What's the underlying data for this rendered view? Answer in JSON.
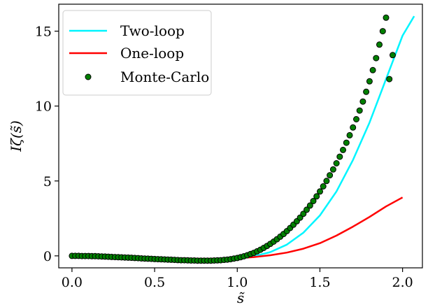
{
  "chart_data": {
    "type": "line",
    "xlabel": "s̃",
    "ylabel": "Iζ(s̃)",
    "xlim": [
      -0.08,
      2.12
    ],
    "ylim": [
      -0.8,
      16.8
    ],
    "xticks": [
      0.0,
      0.5,
      1.0,
      1.5,
      2.0
    ],
    "xtick_labels": [
      "0.0",
      "0.5",
      "1.0",
      "1.5",
      "2.0"
    ],
    "yticks": [
      0,
      5,
      10,
      15
    ],
    "ytick_labels": [
      "0",
      "5",
      "10",
      "15"
    ],
    "grid": false,
    "legend_position": "top-left",
    "series": [
      {
        "name": "Two-loop",
        "kind": "line",
        "color": "#00f5ff",
        "x": [
          0.0,
          0.2,
          0.4,
          0.6,
          0.8,
          1.0,
          1.1,
          1.2,
          1.3,
          1.4,
          1.5,
          1.6,
          1.7,
          1.8,
          1.9,
          2.0,
          2.07
        ],
        "y": [
          0.0,
          -0.02,
          -0.08,
          -0.18,
          -0.24,
          -0.16,
          -0.03,
          0.25,
          0.75,
          1.55,
          2.7,
          4.3,
          6.4,
          8.9,
          11.8,
          14.7,
          16.0
        ]
      },
      {
        "name": "One-loop",
        "kind": "line",
        "color": "#ff0000",
        "x": [
          0.0,
          0.2,
          0.4,
          0.6,
          0.8,
          1.0,
          1.1,
          1.2,
          1.3,
          1.4,
          1.5,
          1.6,
          1.7,
          1.8,
          1.9,
          2.0
        ],
        "y": [
          0.0,
          -0.02,
          -0.07,
          -0.15,
          -0.2,
          -0.16,
          -0.08,
          0.04,
          0.22,
          0.48,
          0.85,
          1.35,
          1.95,
          2.6,
          3.3,
          3.9
        ]
      },
      {
        "name": "Monte-Carlo",
        "kind": "scatter",
        "color": "#008000",
        "x": [
          0.0,
          0.02,
          0.04,
          0.06,
          0.08,
          0.1,
          0.12,
          0.14,
          0.16,
          0.18,
          0.2,
          0.22,
          0.24,
          0.26,
          0.28,
          0.3,
          0.32,
          0.34,
          0.36,
          0.38,
          0.4,
          0.42,
          0.44,
          0.46,
          0.48,
          0.5,
          0.52,
          0.54,
          0.56,
          0.58,
          0.6,
          0.62,
          0.64,
          0.66,
          0.68,
          0.7,
          0.72,
          0.74,
          0.76,
          0.78,
          0.8,
          0.82,
          0.84,
          0.86,
          0.88,
          0.9,
          0.92,
          0.94,
          0.96,
          0.98,
          1.0,
          1.02,
          1.04,
          1.06,
          1.08,
          1.1,
          1.12,
          1.14,
          1.16,
          1.18,
          1.2,
          1.22,
          1.24,
          1.26,
          1.28,
          1.3,
          1.32,
          1.34,
          1.36,
          1.38,
          1.4,
          1.42,
          1.44,
          1.46,
          1.48,
          1.5,
          1.52,
          1.54,
          1.56,
          1.58,
          1.6,
          1.62,
          1.64,
          1.66,
          1.68,
          1.7,
          1.72,
          1.74,
          1.76,
          1.78,
          1.8,
          1.82,
          1.84,
          1.86,
          1.88,
          1.9,
          1.92,
          1.94
        ],
        "y": [
          0.0,
          0.0,
          0.0,
          -0.01,
          -0.01,
          -0.01,
          -0.02,
          -0.02,
          -0.03,
          -0.04,
          -0.05,
          -0.06,
          -0.07,
          -0.08,
          -0.09,
          -0.1,
          -0.11,
          -0.12,
          -0.13,
          -0.14,
          -0.15,
          -0.17,
          -0.18,
          -0.19,
          -0.2,
          -0.21,
          -0.22,
          -0.23,
          -0.24,
          -0.25,
          -0.26,
          -0.27,
          -0.28,
          -0.29,
          -0.29,
          -0.3,
          -0.31,
          -0.31,
          -0.32,
          -0.32,
          -0.32,
          -0.32,
          -0.32,
          -0.31,
          -0.3,
          -0.29,
          -0.27,
          -0.25,
          -0.22,
          -0.18,
          -0.14,
          -0.09,
          -0.03,
          0.04,
          0.12,
          0.2,
          0.3,
          0.41,
          0.53,
          0.66,
          0.8,
          0.95,
          1.11,
          1.28,
          1.46,
          1.65,
          1.86,
          2.08,
          2.31,
          2.55,
          2.81,
          3.08,
          3.36,
          3.66,
          3.97,
          4.3,
          4.64,
          5.0,
          5.38,
          5.77,
          6.18,
          6.62,
          7.07,
          7.55,
          8.05,
          8.57,
          9.12,
          9.7,
          10.3,
          10.95,
          11.65,
          12.4,
          13.2,
          14.1,
          15.0,
          15.9,
          11.8,
          13.4
        ]
      }
    ],
    "legend": [
      {
        "label": "Two-loop",
        "kind": "line",
        "color": "#00f5ff"
      },
      {
        "label": "One-loop",
        "kind": "line",
        "color": "#ff0000"
      },
      {
        "label": "Monte-Carlo",
        "kind": "marker",
        "color": "#008000"
      }
    ]
  }
}
